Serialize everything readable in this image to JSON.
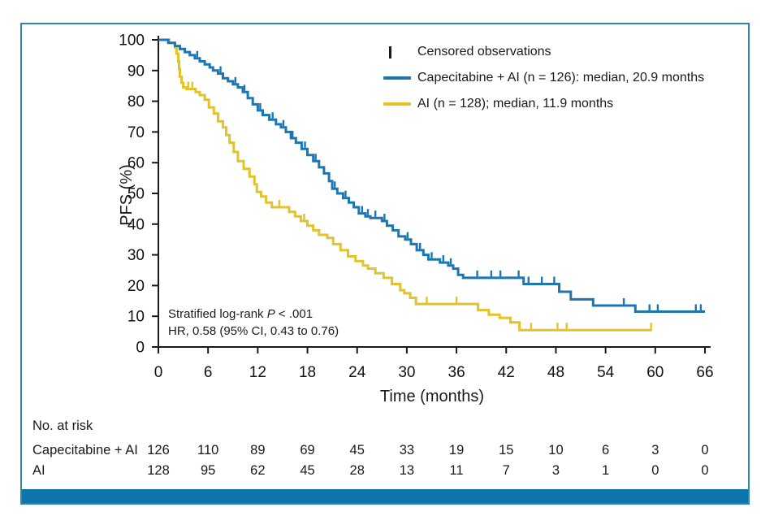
{
  "figure": {
    "frame_color": "#2e86a8",
    "footer_bar_color": "#0e75ac",
    "axis_color": "#1a1a1a"
  },
  "legend": {
    "censored_label": "Censored observations",
    "entries": [
      {
        "label": "Capecitabine + AI (n = 126): median, 20.9 months",
        "color": "#1b76b1"
      },
      {
        "label": "AI (n = 128); median, 11.9 months",
        "color": "#e2c32b"
      }
    ]
  },
  "annotation": {
    "line1_prefix": "Stratified log-rank ",
    "line1_italic": "P",
    "line1_suffix": " < .001",
    "line2": "HR, 0.58 (95% CI, 0.43 to 0.76)"
  },
  "chart_data": {
    "type": "line",
    "subtype": "kaplan-meier-step",
    "title": "",
    "xlabel": "Time (months)",
    "ylabel": "PFS (%)",
    "xlim": [
      0,
      66
    ],
    "ylim": [
      0,
      100
    ],
    "xticks": [
      0,
      6,
      12,
      18,
      24,
      30,
      36,
      42,
      48,
      54,
      60,
      66
    ],
    "yticks": [
      0,
      10,
      20,
      30,
      40,
      50,
      60,
      70,
      80,
      90,
      100
    ],
    "grid": false,
    "legend_position": "top-right-inside",
    "series": [
      {
        "id": "capecitabine-ai",
        "name": "Capecitabine + AI",
        "n": 126,
        "median_months": 20.9,
        "color": "#1b76b1",
        "end": 66,
        "points": [
          [
            0,
            100
          ],
          [
            1.2,
            99
          ],
          [
            2.0,
            98
          ],
          [
            2.6,
            97
          ],
          [
            3.2,
            96
          ],
          [
            3.8,
            95
          ],
          [
            4.4,
            94
          ],
          [
            5.0,
            93
          ],
          [
            5.6,
            92
          ],
          [
            6.2,
            91
          ],
          [
            6.6,
            90
          ],
          [
            7.2,
            89
          ],
          [
            7.8,
            87.5
          ],
          [
            8.4,
            86.5
          ],
          [
            9.0,
            85.5
          ],
          [
            9.6,
            84.5
          ],
          [
            10.2,
            83
          ],
          [
            10.8,
            81
          ],
          [
            11.4,
            79
          ],
          [
            12.0,
            77
          ],
          [
            12.6,
            75.5
          ],
          [
            13.4,
            74
          ],
          [
            14.2,
            72.5
          ],
          [
            14.8,
            71.5
          ],
          [
            15.4,
            70
          ],
          [
            16.0,
            68
          ],
          [
            16.6,
            66.5
          ],
          [
            17.3,
            64.5
          ],
          [
            18.0,
            62.5
          ],
          [
            18.7,
            60.5
          ],
          [
            19.4,
            58.5
          ],
          [
            20.0,
            56.5
          ],
          [
            20.6,
            54
          ],
          [
            21.0,
            51.5
          ],
          [
            21.6,
            50
          ],
          [
            22.3,
            48.5
          ],
          [
            23.0,
            47
          ],
          [
            23.6,
            45.5
          ],
          [
            24.2,
            43.5
          ],
          [
            25.0,
            42.5
          ],
          [
            25.6,
            42
          ],
          [
            27.0,
            41
          ],
          [
            27.6,
            39.5
          ],
          [
            28.3,
            38
          ],
          [
            29.0,
            36
          ],
          [
            29.8,
            35
          ],
          [
            30.5,
            33.5
          ],
          [
            31.2,
            31.5
          ],
          [
            32.0,
            30
          ],
          [
            32.6,
            28.5
          ],
          [
            34.0,
            27.5
          ],
          [
            35.0,
            26.5
          ],
          [
            35.6,
            25.5
          ],
          [
            36.2,
            23.5
          ],
          [
            36.8,
            22.5
          ],
          [
            44.1,
            20.5
          ],
          [
            48.4,
            18
          ],
          [
            49.8,
            15.5
          ],
          [
            52.5,
            13.5
          ],
          [
            57.6,
            11.5
          ]
        ],
        "censors": [
          4.7,
          7.5,
          9.3,
          10.4,
          12.3,
          13.8,
          15.1,
          16.2,
          17.7,
          19.0,
          21.3,
          22.6,
          24.6,
          25.3,
          26.2,
          27.3,
          30.1,
          31.6,
          33.0,
          34.4,
          35.3,
          38.5,
          40.2,
          41.3,
          43.5,
          44.7,
          46.3,
          47.8,
          56.2,
          59.3,
          60.3,
          64.9,
          65.5
        ]
      },
      {
        "id": "ai",
        "name": "AI",
        "n": 128,
        "median_months": 11.9,
        "color": "#e2c32b",
        "end": 59.6,
        "points": [
          [
            0,
            100
          ],
          [
            1.3,
            99
          ],
          [
            2.0,
            97.5
          ],
          [
            2.2,
            95.5
          ],
          [
            2.4,
            93
          ],
          [
            2.5,
            90.5
          ],
          [
            2.6,
            88
          ],
          [
            2.8,
            86
          ],
          [
            3.0,
            84.5
          ],
          [
            3.4,
            84
          ],
          [
            4.5,
            83
          ],
          [
            5.0,
            82
          ],
          [
            5.6,
            80.5
          ],
          [
            6.1,
            78
          ],
          [
            6.7,
            76
          ],
          [
            7.2,
            73.5
          ],
          [
            7.8,
            71.5
          ],
          [
            8.2,
            69
          ],
          [
            8.6,
            66.5
          ],
          [
            9.1,
            63.5
          ],
          [
            9.6,
            60.5
          ],
          [
            10.3,
            58
          ],
          [
            11.0,
            55.5
          ],
          [
            11.6,
            53
          ],
          [
            11.9,
            50.5
          ],
          [
            12.4,
            49
          ],
          [
            13.0,
            47
          ],
          [
            13.7,
            45.5
          ],
          [
            15.8,
            44
          ],
          [
            16.5,
            42.5
          ],
          [
            17.2,
            41
          ],
          [
            18.0,
            39.5
          ],
          [
            18.7,
            38
          ],
          [
            19.4,
            36.5
          ],
          [
            20.4,
            35.5
          ],
          [
            21.1,
            33.5
          ],
          [
            22.0,
            31.5
          ],
          [
            22.9,
            29.5
          ],
          [
            23.8,
            28
          ],
          [
            24.7,
            26.5
          ],
          [
            25.3,
            25.5
          ],
          [
            26.2,
            24
          ],
          [
            27.2,
            22.5
          ],
          [
            28.2,
            20.5
          ],
          [
            29.2,
            18.5
          ],
          [
            29.7,
            17.5
          ],
          [
            30.4,
            16
          ],
          [
            31.1,
            14
          ],
          [
            38.6,
            12
          ],
          [
            39.9,
            10.5
          ],
          [
            41.2,
            9.5
          ],
          [
            42.5,
            8
          ],
          [
            43.6,
            5.5
          ]
        ],
        "censors": [
          3.6,
          4.1,
          14.6,
          17.6,
          32.4,
          36.0,
          45.0,
          48.2,
          49.3,
          59.5
        ]
      }
    ],
    "risk_table": {
      "title": "No. at risk",
      "columns": [
        0,
        6,
        12,
        18,
        24,
        30,
        36,
        42,
        48,
        54,
        60,
        66
      ],
      "rows": [
        {
          "label": "Capecitabine + AI",
          "values": [
            126,
            110,
            89,
            69,
            45,
            33,
            19,
            15,
            10,
            6,
            3,
            0
          ]
        },
        {
          "label": "AI",
          "values": [
            128,
            95,
            62,
            45,
            28,
            13,
            11,
            7,
            3,
            1,
            0,
            0
          ]
        }
      ]
    }
  }
}
